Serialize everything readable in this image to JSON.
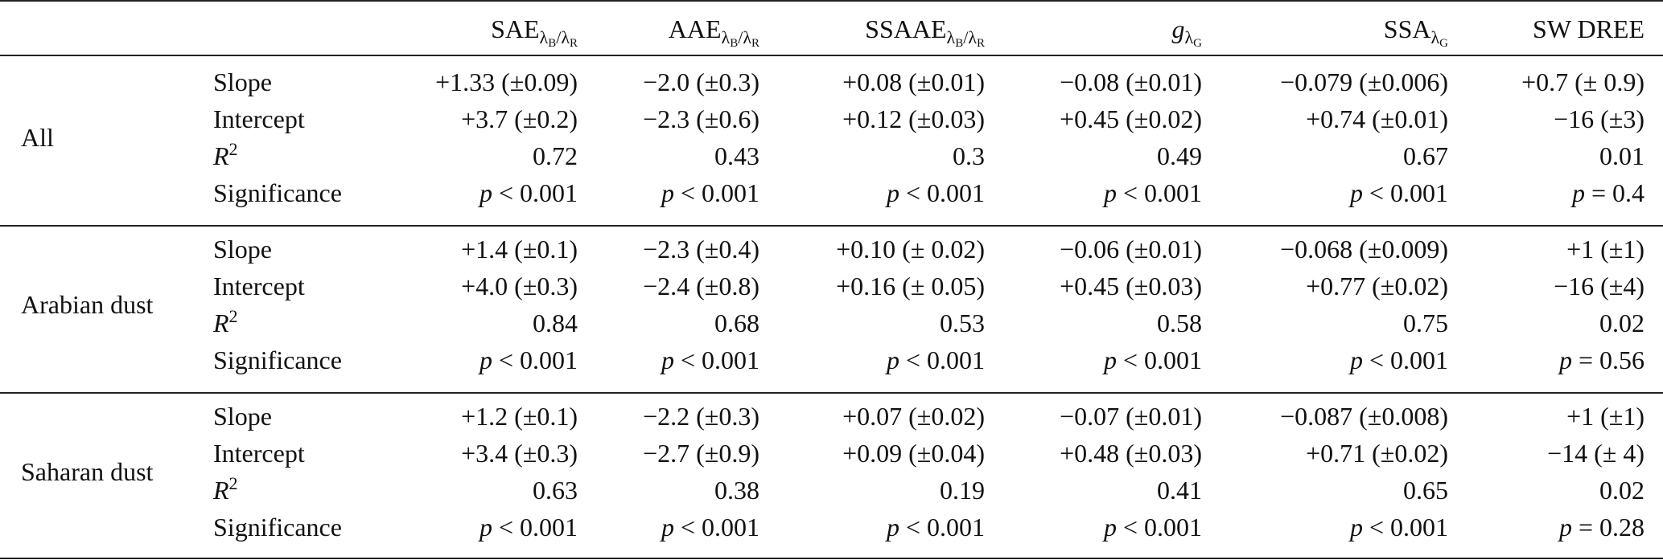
{
  "headers": [
    {
      "base": "SAE",
      "sub": "λ",
      "subsub1": "B",
      "slash": "/λ",
      "subsub2": "R"
    },
    {
      "base": "AAE",
      "sub": "λ",
      "subsub1": "B",
      "slash": "/λ",
      "subsub2": "R"
    },
    {
      "base": "SSAAE",
      "sub": "λ",
      "subsub1": "B",
      "slash": "/λ",
      "subsub2": "R"
    },
    {
      "base": "g",
      "sub": "λ",
      "subsub1": "G",
      "slash": "",
      "subsub2": ""
    },
    {
      "base": "SSA",
      "sub": "λ",
      "subsub1": "G",
      "slash": "",
      "subsub2": ""
    },
    {
      "base": "SW DREE",
      "sub": "",
      "subsub1": "",
      "slash": "",
      "subsub2": ""
    }
  ],
  "groups": [
    {
      "name": "All",
      "rows": [
        {
          "label": "Slope",
          "values": [
            "+1.33 (±0.09)",
            "−2.0 (±0.3)",
            "+0.08 (±0.01)",
            "−0.08 (±0.01)",
            "−0.079 (±0.006)",
            "+0.7 (± 0.9)"
          ]
        },
        {
          "label": "Intercept",
          "values": [
            "+3.7 (±0.2)",
            "−2.3 (±0.6)",
            "+0.12 (±0.03)",
            "+0.45 (±0.02)",
            "+0.74 (±0.01)",
            "−16 (±3)"
          ]
        },
        {
          "label": "R",
          "label_sup": "2",
          "values": [
            "0.72",
            "0.43",
            "0.3",
            "0.49",
            "0.67",
            "0.01"
          ]
        },
        {
          "label": "Significance",
          "values": [
            "p < 0.001",
            "p < 0.001",
            "p < 0.001",
            "p < 0.001",
            "p < 0.001",
            "p = 0.4"
          ]
        }
      ]
    },
    {
      "name": "Arabian dust",
      "rows": [
        {
          "label": "Slope",
          "values": [
            "+1.4 (±0.1)",
            "−2.3 (±0.4)",
            "+0.10 (± 0.02)",
            "−0.06 (±0.01)",
            "−0.068 (±0.009)",
            "+1 (±1)"
          ]
        },
        {
          "label": "Intercept",
          "values": [
            "+4.0 (±0.3)",
            "−2.4 (±0.8)",
            "+0.16 (± 0.05)",
            "+0.45 (±0.03)",
            "+0.77 (±0.02)",
            "−16 (±4)"
          ]
        },
        {
          "label": "R",
          "label_sup": "2",
          "values": [
            "0.84",
            "0.68",
            "0.53",
            "0.58",
            "0.75",
            "0.02"
          ]
        },
        {
          "label": "Significance",
          "values": [
            "p < 0.001",
            "p < 0.001",
            "p < 0.001",
            "p < 0.001",
            "p < 0.001",
            "p = 0.56"
          ]
        }
      ]
    },
    {
      "name": "Saharan dust",
      "rows": [
        {
          "label": "Slope",
          "values": [
            "+1.2 (±0.1)",
            "−2.2 (±0.3)",
            "+0.07 (±0.02)",
            "−0.07 (±0.01)",
            "−0.087 (±0.008)",
            "+1 (±1)"
          ]
        },
        {
          "label": "Intercept",
          "values": [
            "+3.4 (±0.3)",
            "−2.7 (±0.9)",
            "+0.09 (±0.04)",
            "+0.48 (±0.03)",
            "+0.71 (±0.02)",
            "−14 (± 4)"
          ]
        },
        {
          "label": "R",
          "label_sup": "2",
          "values": [
            "0.63",
            "0.38",
            "0.19",
            "0.41",
            "0.65",
            "0.02"
          ]
        },
        {
          "label": "Significance",
          "values": [
            "p < 0.001",
            "p < 0.001",
            "p < 0.001",
            "p < 0.001",
            "p < 0.001",
            "p = 0.28"
          ]
        }
      ]
    }
  ]
}
